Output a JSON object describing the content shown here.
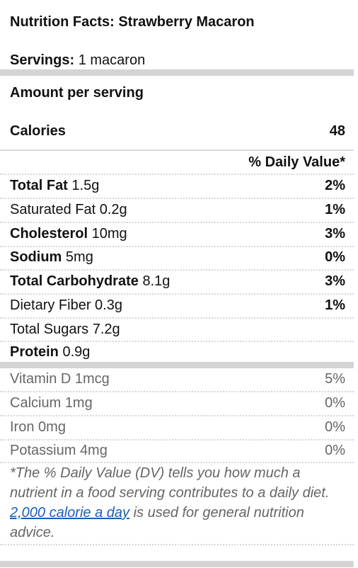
{
  "label": {
    "title": "Nutrition Facts: Strawberry Macaron",
    "servings_label": "Servings:",
    "servings_value": "1 macaron",
    "amount_per_serving": "Amount per serving",
    "calories_label": "Calories",
    "calories_value": "48",
    "daily_value_header": "% Daily Value*"
  },
  "nutrients": [
    {
      "name": "Total Fat",
      "amount": "1.5g",
      "dv": "2%"
    },
    {
      "name": "Saturated Fat",
      "amount": "0.2g",
      "dv": "1%"
    },
    {
      "name": "Cholesterol",
      "amount": "10mg",
      "dv": "3%"
    },
    {
      "name": "Sodium",
      "amount": "5mg",
      "dv": "0%"
    },
    {
      "name": "Total Carbohydrate",
      "amount": "8.1g",
      "dv": "3%"
    },
    {
      "name": "Dietary Fiber",
      "amount": "0.3g",
      "dv": "1%"
    },
    {
      "name": "Total Sugars",
      "amount": "7.2g",
      "dv": ""
    },
    {
      "name": "Protein",
      "amount": "0.9g",
      "dv": ""
    }
  ],
  "vitamins": [
    {
      "name": "Vitamin D",
      "amount": "1mcg",
      "dv": "5%"
    },
    {
      "name": "Calcium",
      "amount": "1mg",
      "dv": "0%"
    },
    {
      "name": "Iron",
      "amount": "0mg",
      "dv": "0%"
    },
    {
      "name": "Potassium",
      "amount": "4mg",
      "dv": "0%"
    }
  ],
  "footnote": {
    "before_link": "*The % Daily Value (DV) tells you how much a nutrient in a food serving contributes to a daily diet. ",
    "link_text": "2,000 calorie a day",
    "after_link": " is used for general nutrition advice."
  }
}
